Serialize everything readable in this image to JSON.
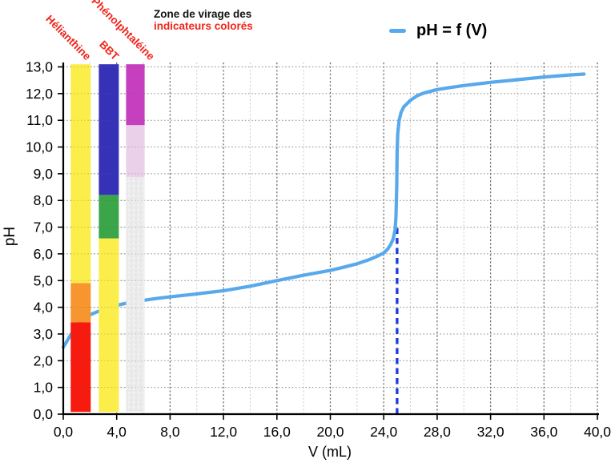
{
  "ui": {
    "header": {
      "line1": "Zone de virage des",
      "line2": "indicateurs colorés"
    },
    "legend": {
      "label": "pH = f (V)",
      "swatch_color": "#58A9EC"
    }
  },
  "chart_data": {
    "type": "line",
    "title": "Zone de virage des indicateurs colorés",
    "x_axis": {
      "label": "V (mL)",
      "min": 0,
      "max": 40,
      "major_step": 4,
      "minor_step": 2,
      "tick_labels": [
        "0,0",
        "4,0",
        "8,0",
        "12,0",
        "16,0",
        "20,0",
        "24,0",
        "28,0",
        "32,0",
        "36,0",
        "40,0"
      ]
    },
    "y_axis": {
      "label": "pH",
      "min": 0,
      "max": 13,
      "major_step": 1,
      "tick_labels": [
        "0,0",
        "1,0",
        "2,0",
        "3,0",
        "4,0",
        "5,0",
        "6,0",
        "7,0",
        "8,0",
        "9,0",
        "10,0",
        "11,0",
        "12,0",
        "13,0"
      ]
    },
    "grid": {
      "major_v_color": "#6E6E6E",
      "minor_v_color": "#C9C9C9",
      "h_color": "#8B8B8B",
      "grid_on": true
    },
    "legend_position": "top-right",
    "series": [
      {
        "name": "pH = f (V)",
        "color": "#58A9EC",
        "points": [
          [
            0,
            2.5
          ],
          [
            0.3,
            2.75
          ],
          [
            0.55,
            2.97
          ],
          [
            1,
            3.3
          ],
          [
            1.5,
            3.55
          ],
          [
            2,
            3.72
          ],
          [
            2.5,
            3.82
          ],
          [
            3,
            3.92
          ],
          [
            3.5,
            4.0
          ],
          [
            4,
            4.07
          ],
          [
            4.5,
            4.13
          ],
          [
            5,
            4.18
          ],
          [
            6,
            4.26
          ],
          [
            7,
            4.33
          ],
          [
            8,
            4.39
          ],
          [
            10,
            4.5
          ],
          [
            12,
            4.62
          ],
          [
            14,
            4.79
          ],
          [
            16,
            5.0
          ],
          [
            18,
            5.2
          ],
          [
            20,
            5.38
          ],
          [
            21,
            5.5
          ],
          [
            22,
            5.63
          ],
          [
            23,
            5.8
          ],
          [
            23.5,
            5.91
          ],
          [
            24,
            6.03
          ],
          [
            24.3,
            6.18
          ],
          [
            24.5,
            6.33
          ],
          [
            24.7,
            6.55
          ],
          [
            24.85,
            6.9
          ],
          [
            24.92,
            7.4
          ],
          [
            24.97,
            8.5
          ],
          [
            25.0,
            9.8
          ],
          [
            25.05,
            10.5
          ],
          [
            25.15,
            11.0
          ],
          [
            25.3,
            11.3
          ],
          [
            25.5,
            11.5
          ],
          [
            26,
            11.75
          ],
          [
            26.5,
            11.92
          ],
          [
            27,
            12.02
          ],
          [
            28,
            12.15
          ],
          [
            29,
            12.23
          ],
          [
            30,
            12.3
          ],
          [
            32,
            12.42
          ],
          [
            34,
            12.52
          ],
          [
            36,
            12.62
          ],
          [
            38,
            12.7
          ],
          [
            39,
            12.73
          ]
        ]
      }
    ],
    "equivalence": {
      "V": 25,
      "pH_top": 7.0,
      "color": "#1C3EDA",
      "style": "dashed"
    },
    "bar_top_pH": 13.1,
    "bar_bottom_pH": 0.08,
    "indicators": [
      {
        "name": "Hélianthine",
        "V_range": [
          0.56,
          2.06
        ],
        "zones": [
          {
            "from": 0.08,
            "to": 3.44,
            "color": "#F61A0F"
          },
          {
            "from": 3.44,
            "to": 4.91,
            "color": "#F7952F"
          },
          {
            "from": 4.91,
            "to": 13.1,
            "color": "#FBEE4A"
          }
        ]
      },
      {
        "name": "BBT",
        "V_range": [
          2.66,
          4.16
        ],
        "zones": [
          {
            "from": 0.08,
            "to": 6.58,
            "color": "#FBEE4A"
          },
          {
            "from": 6.58,
            "to": 8.21,
            "color": "#3BA549"
          },
          {
            "from": 8.21,
            "to": 13.1,
            "color": "#3632B8"
          }
        ]
      },
      {
        "name": "Phénolphtaléine",
        "V_range": [
          4.7,
          6.09
        ],
        "zones": [
          {
            "from": 0.08,
            "to": 8.88,
            "color": "#ECECEC",
            "texture": "speckle"
          },
          {
            "from": 8.88,
            "to": 10.82,
            "color": "#EAD0E8"
          },
          {
            "from": 10.82,
            "to": 13.1,
            "color": "#C53FBF"
          }
        ]
      }
    ]
  }
}
